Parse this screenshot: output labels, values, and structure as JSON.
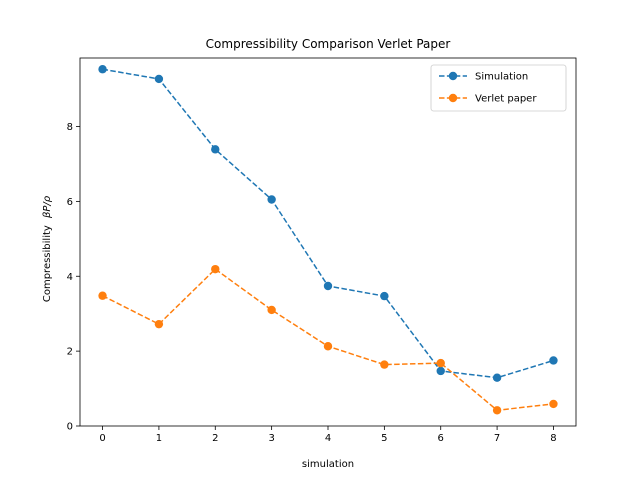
{
  "chart_data": {
    "type": "line",
    "title": "Compressibility Comparison Verlet Paper",
    "xlabel": "simulation",
    "ylabel_prefix": "Compressibility",
    "ylabel_math": "βP/ρ",
    "x": [
      0,
      1,
      2,
      3,
      4,
      5,
      6,
      7,
      8
    ],
    "xlim": [
      -0.4,
      8.4
    ],
    "ylim": [
      0,
      9.83
    ],
    "xticks": [
      "0",
      "1",
      "2",
      "3",
      "4",
      "5",
      "6",
      "7",
      "8"
    ],
    "yticks": [
      "0",
      "2",
      "4",
      "6",
      "8"
    ],
    "grid": false,
    "legend_position": "top-right",
    "series": [
      {
        "name": "Simulation",
        "color": "#1f77b4",
        "linestyle": "dashed",
        "marker": "circle",
        "values": [
          9.53,
          9.27,
          7.39,
          6.05,
          3.74,
          3.47,
          1.47,
          1.29,
          1.75
        ]
      },
      {
        "name": "Verlet paper",
        "color": "#ff7f0e",
        "linestyle": "dashed",
        "marker": "circle",
        "values": [
          3.48,
          2.72,
          4.19,
          3.1,
          2.13,
          1.64,
          1.68,
          0.42,
          0.59
        ]
      }
    ]
  }
}
